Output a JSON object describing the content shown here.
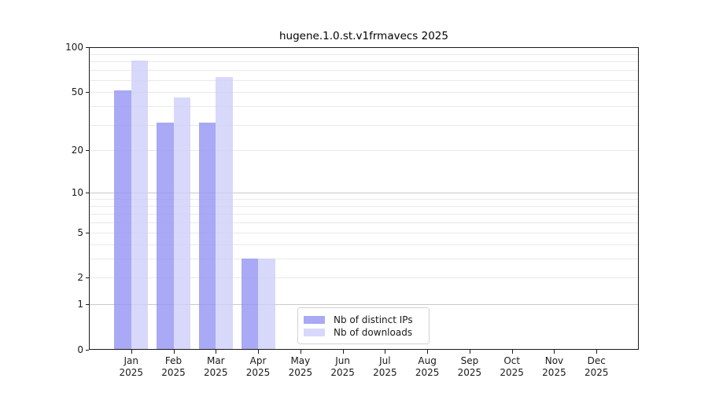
{
  "chart_data": {
    "type": "bar",
    "title": "hugene.1.0.st.v1frmavecs 2025",
    "categories": [
      "Jan",
      "Feb",
      "Mar",
      "Apr",
      "May",
      "Jun",
      "Jul",
      "Aug",
      "Sep",
      "Oct",
      "Nov",
      "Dec"
    ],
    "year": "2025",
    "series": [
      {
        "name": "Nb of distinct IPs",
        "color": "rgba(148,148,242,0.8)",
        "values": [
          51,
          31,
          31,
          3,
          0,
          0,
          0,
          0,
          0,
          0,
          0,
          0
        ]
      },
      {
        "name": "Nb of downloads",
        "color": "rgba(206,206,249,0.8)",
        "values": [
          81,
          46,
          63,
          3,
          0,
          0,
          0,
          0,
          0,
          0,
          0,
          0
        ]
      }
    ],
    "yscale": "log1p",
    "ylim": [
      0,
      100
    ],
    "yticks": [
      0,
      1,
      2,
      5,
      10,
      20,
      50,
      100
    ],
    "grid_minor": [
      2,
      3,
      4,
      5,
      6,
      7,
      8,
      9,
      20,
      30,
      40,
      50,
      60,
      70,
      80,
      90
    ],
    "grid_major": [
      1,
      10
    ],
    "xlabel": "",
    "ylabel": "",
    "legend_position": "lower center",
    "grid": "horizontal"
  },
  "colors": {
    "background": "#ffffff",
    "axis": "#1a1a1a",
    "grid_minor": "#e9e9e9",
    "grid_major": "#c9c9c9",
    "legend_border": "#d2d2d2",
    "text": "#1a1a1a"
  }
}
